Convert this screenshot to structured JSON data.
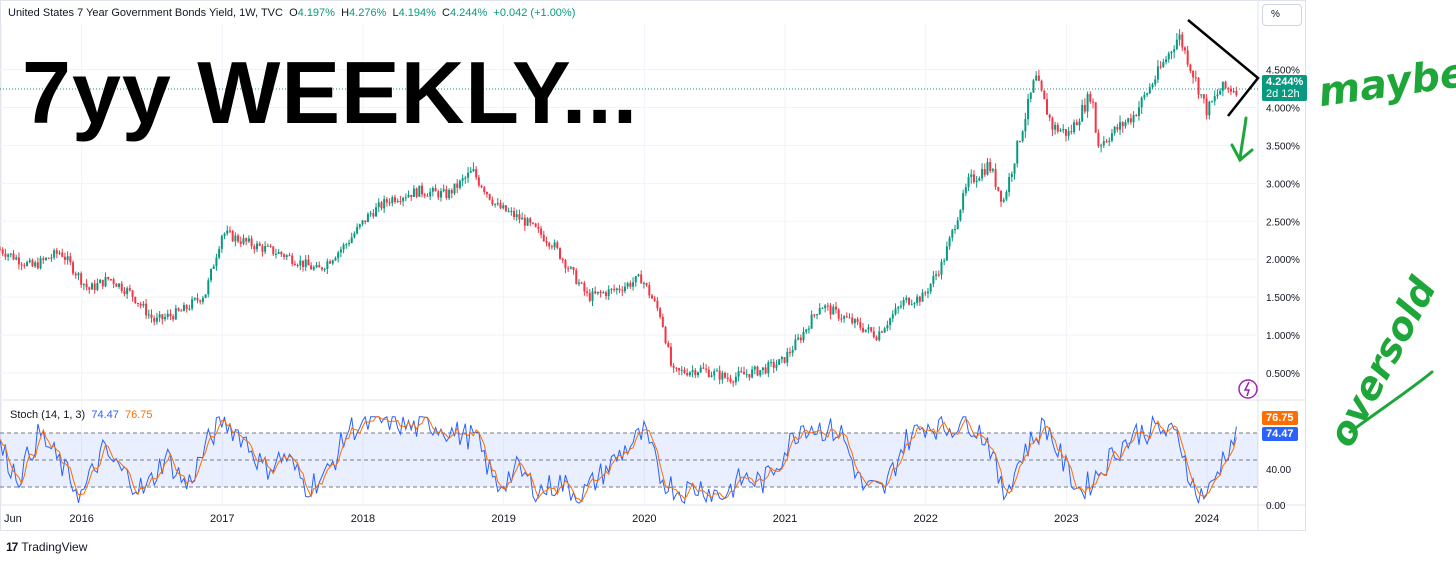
{
  "header": {
    "symbol": "United States 7 Year Government Bonds Yield, 1W, TVC",
    "o_label": "O",
    "o_value": "4.197%",
    "h_label": "H",
    "h_value": "4.276%",
    "l_label": "L",
    "l_value": "4.194%",
    "c_label": "C",
    "c_value": "4.244%",
    "change": "+0.042 (+1.00%)"
  },
  "overlay_title": "7yy WEEKLY...",
  "unit_button": "%",
  "price_tag": {
    "value": "4.244%",
    "countdown": "2d 12h",
    "color": "#089981"
  },
  "stoch": {
    "label": "Stoch (14, 1, 3)",
    "k_value": "74.47",
    "d_value": "76.75",
    "k_color": "#2962ff",
    "d_color": "#ff6d00",
    "ticks": [
      "0.00",
      "40.00"
    ],
    "levels": [
      20,
      50,
      80
    ]
  },
  "annotations": {
    "maybe": "maybe",
    "oversold": "oversold",
    "color": "#1fa63a"
  },
  "branding": {
    "logo_mark": "17",
    "name": "TradingView"
  },
  "chart_data": {
    "type": "candlestick",
    "ylabel": "",
    "y_unit": "%",
    "ylim": [
      0.25,
      5.1
    ],
    "y_ticks": [
      "0.500%",
      "1.000%",
      "1.500%",
      "2.000%",
      "2.500%",
      "3.000%",
      "3.500%",
      "4.000%",
      "4.500%"
    ],
    "x_ticks": [
      "Jun",
      "2016",
      "2017",
      "2018",
      "2019",
      "2020",
      "2021",
      "2022",
      "2023",
      "2024"
    ],
    "up_color": "#089981",
    "down_color": "#f23645",
    "last_value": 4.244,
    "series_points": [
      [
        2015.4,
        2.15
      ],
      [
        2015.65,
        1.9
      ],
      [
        2015.85,
        2.1
      ],
      [
        2016.05,
        1.6
      ],
      [
        2016.2,
        1.75
      ],
      [
        2016.35,
        1.55
      ],
      [
        2016.52,
        1.18
      ],
      [
        2016.72,
        1.32
      ],
      [
        2016.88,
        1.55
      ],
      [
        2017.0,
        2.35
      ],
      [
        2017.2,
        2.2
      ],
      [
        2017.45,
        2.05
      ],
      [
        2017.68,
        1.85
      ],
      [
        2017.88,
        2.2
      ],
      [
        2018.05,
        2.6
      ],
      [
        2018.2,
        2.8
      ],
      [
        2018.4,
        2.9
      ],
      [
        2018.6,
        2.85
      ],
      [
        2018.78,
        3.15
      ],
      [
        2018.95,
        2.7
      ],
      [
        2019.15,
        2.5
      ],
      [
        2019.35,
        2.2
      ],
      [
        2019.6,
        1.5
      ],
      [
        2019.8,
        1.6
      ],
      [
        2019.98,
        1.75
      ],
      [
        2020.12,
        1.25
      ],
      [
        2020.2,
        0.5
      ],
      [
        2020.4,
        0.55
      ],
      [
        2020.6,
        0.43
      ],
      [
        2020.85,
        0.55
      ],
      [
        2020.98,
        0.65
      ],
      [
        2021.12,
        1.0
      ],
      [
        2021.25,
        1.4
      ],
      [
        2021.45,
        1.2
      ],
      [
        2021.65,
        1.0
      ],
      [
        2021.85,
        1.45
      ],
      [
        2021.98,
        1.5
      ],
      [
        2022.12,
        1.95
      ],
      [
        2022.3,
        3.0
      ],
      [
        2022.45,
        3.25
      ],
      [
        2022.55,
        2.75
      ],
      [
        2022.78,
        4.4
      ],
      [
        2022.9,
        3.75
      ],
      [
        2023.02,
        3.65
      ],
      [
        2023.18,
        4.2
      ],
      [
        2023.22,
        3.5
      ],
      [
        2023.48,
        3.9
      ],
      [
        2023.62,
        4.35
      ],
      [
        2023.8,
        4.95
      ],
      [
        2023.92,
        4.35
      ],
      [
        2024.0,
        3.95
      ],
      [
        2024.1,
        4.25
      ],
      [
        2024.2,
        4.25
      ]
    ],
    "stoch_points": [
      [
        2015.4,
        70
      ],
      [
        2015.55,
        30
      ],
      [
        2015.7,
        80
      ],
      [
        2015.85,
        45
      ],
      [
        2016.0,
        10
      ],
      [
        2016.15,
        60
      ],
      [
        2016.3,
        35
      ],
      [
        2016.45,
        15
      ],
      [
        2016.6,
        55
      ],
      [
        2016.75,
        20
      ],
      [
        2016.9,
        70
      ],
      [
        2017.0,
        95
      ],
      [
        2017.15,
        75
      ],
      [
        2017.3,
        40
      ],
      [
        2017.45,
        55
      ],
      [
        2017.6,
        20
      ],
      [
        2017.75,
        35
      ],
      [
        2017.9,
        85
      ],
      [
        2018.05,
        90
      ],
      [
        2018.2,
        95
      ],
      [
        2018.35,
        85
      ],
      [
        2018.5,
        90
      ],
      [
        2018.65,
        80
      ],
      [
        2018.8,
        75
      ],
      [
        2018.95,
        20
      ],
      [
        2019.1,
        40
      ],
      [
        2019.25,
        15
      ],
      [
        2019.4,
        25
      ],
      [
        2019.55,
        10
      ],
      [
        2019.7,
        35
      ],
      [
        2019.85,
        60
      ],
      [
        2020.0,
        80
      ],
      [
        2020.12,
        30
      ],
      [
        2020.25,
        15
      ],
      [
        2020.4,
        20
      ],
      [
        2020.55,
        10
      ],
      [
        2020.7,
        30
      ],
      [
        2020.85,
        25
      ],
      [
        2021.0,
        60
      ],
      [
        2021.12,
        90
      ],
      [
        2021.25,
        85
      ],
      [
        2021.4,
        80
      ],
      [
        2021.55,
        20
      ],
      [
        2021.7,
        15
      ],
      [
        2021.85,
        70
      ],
      [
        2022.0,
        90
      ],
      [
        2022.15,
        85
      ],
      [
        2022.3,
        95
      ],
      [
        2022.45,
        70
      ],
      [
        2022.55,
        10
      ],
      [
        2022.7,
        60
      ],
      [
        2022.85,
        90
      ],
      [
        2023.0,
        40
      ],
      [
        2023.1,
        15
      ],
      [
        2023.2,
        30
      ],
      [
        2023.35,
        60
      ],
      [
        2023.5,
        80
      ],
      [
        2023.65,
        85
      ],
      [
        2023.8,
        75
      ],
      [
        2023.92,
        10
      ],
      [
        2024.02,
        15
      ],
      [
        2024.12,
        55
      ],
      [
        2024.2,
        76
      ]
    ]
  }
}
